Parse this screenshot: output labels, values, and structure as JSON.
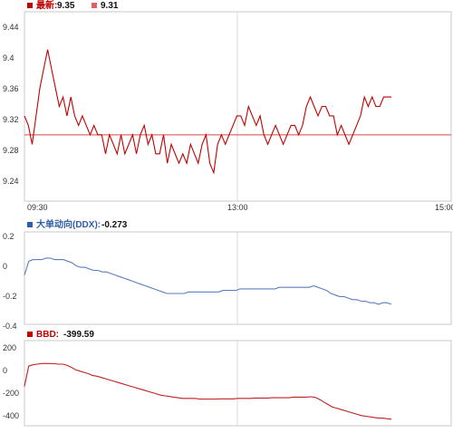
{
  "chart_data": [
    {
      "type": "line",
      "panel": "price",
      "legend": [
        {
          "label": "最新:",
          "value": "9.35",
          "color": "#c00000"
        },
        {
          "label": "",
          "value": "9.31",
          "color": "#e06060"
        }
      ],
      "y_ticks": [
        "9.44",
        "9.4",
        "9.36",
        "9.32",
        "9.28",
        "9.24"
      ],
      "ylim": [
        9.24,
        9.44
      ],
      "x_ticks": [
        "09:30",
        "13:00",
        "15:00"
      ],
      "reference_line": 9.31,
      "grid": true,
      "series": [
        {
          "color": "#c00000",
          "values": [
            9.33,
            9.32,
            9.3,
            9.33,
            9.36,
            9.38,
            9.4,
            9.38,
            9.36,
            9.34,
            9.35,
            9.33,
            9.35,
            9.33,
            9.32,
            9.33,
            9.32,
            9.31,
            9.32,
            9.31,
            9.31,
            9.29,
            9.31,
            9.3,
            9.29,
            9.31,
            9.29,
            9.3,
            9.31,
            9.29,
            9.31,
            9.32,
            9.3,
            9.31,
            9.29,
            9.29,
            9.31,
            9.28,
            9.3,
            9.29,
            9.28,
            9.29,
            9.28,
            9.3,
            9.29,
            9.28,
            9.3,
            9.31,
            9.28,
            9.27,
            9.3,
            9.31,
            9.3,
            9.31,
            9.32,
            9.33,
            9.33,
            9.32,
            9.34,
            9.33,
            9.32,
            9.33,
            9.31,
            9.3,
            9.31,
            9.32,
            9.31,
            9.3,
            9.31,
            9.32,
            9.32,
            9.31,
            9.32,
            9.34,
            9.35,
            9.34,
            9.33,
            9.34,
            9.34,
            9.33,
            9.33,
            9.31,
            9.32,
            9.31,
            9.3,
            9.31,
            9.32,
            9.33,
            9.35,
            9.34,
            9.35,
            9.34,
            9.34,
            9.35,
            9.35,
            9.35
          ]
        }
      ]
    },
    {
      "type": "line",
      "panel": "ddx",
      "legend": [
        {
          "label": "大单动向(DDX):",
          "value": "-0.273",
          "color": "#2f5ea8"
        }
      ],
      "y_ticks": [
        "0.2",
        "0",
        "-0.2",
        "-0.4"
      ],
      "ylim": [
        -0.4,
        0.2
      ],
      "x_ticks": [
        "09:30",
        "13:00",
        "15:00"
      ],
      "grid": true,
      "series": [
        {
          "color": "#5b7fc0",
          "values": [
            -0.08,
            0.01,
            0.02,
            0.02,
            0.02,
            0.03,
            0.03,
            0.02,
            0.02,
            0.02,
            0.01,
            0.0,
            -0.02,
            -0.03,
            -0.03,
            -0.04,
            -0.05,
            -0.05,
            -0.06,
            -0.06,
            -0.07,
            -0.08,
            -0.09,
            -0.1,
            -0.11,
            -0.12,
            -0.13,
            -0.14,
            -0.15,
            -0.16,
            -0.17,
            -0.18,
            -0.19,
            -0.2,
            -0.2,
            -0.2,
            -0.2,
            -0.2,
            -0.19,
            -0.19,
            -0.19,
            -0.19,
            -0.19,
            -0.19,
            -0.19,
            -0.19,
            -0.18,
            -0.18,
            -0.18,
            -0.18,
            -0.17,
            -0.17,
            -0.17,
            -0.17,
            -0.17,
            -0.17,
            -0.17,
            -0.17,
            -0.17,
            -0.16,
            -0.16,
            -0.16,
            -0.16,
            -0.16,
            -0.16,
            -0.16,
            -0.16,
            -0.15,
            -0.16,
            -0.17,
            -0.18,
            -0.2,
            -0.21,
            -0.22,
            -0.22,
            -0.23,
            -0.24,
            -0.24,
            -0.25,
            -0.25,
            -0.26,
            -0.26,
            -0.27,
            -0.26,
            -0.26,
            -0.27
          ]
        }
      ]
    },
    {
      "type": "line",
      "panel": "bbd",
      "legend": [
        {
          "label": "BBD:",
          "value": "-399.59",
          "color": "#c00000"
        }
      ],
      "y_ticks": [
        "200",
        "0",
        "-200",
        "-400"
      ],
      "ylim": [
        -450,
        220
      ],
      "x_ticks": [
        "09:30",
        "13:00",
        "15:00"
      ],
      "grid": true,
      "series": [
        {
          "color": "#c02020",
          "values": [
            -140,
            20,
            30,
            35,
            40,
            40,
            40,
            38,
            35,
            35,
            25,
            10,
            -10,
            -20,
            -30,
            -40,
            -55,
            -60,
            -70,
            -80,
            -90,
            -100,
            -110,
            -120,
            -130,
            -140,
            -150,
            -160,
            -170,
            -180,
            -190,
            -200,
            -210,
            -215,
            -220,
            -225,
            -230,
            -235,
            -235,
            -235,
            -235,
            -240,
            -240,
            -240,
            -240,
            -240,
            -238,
            -238,
            -238,
            -238,
            -235,
            -235,
            -235,
            -235,
            -232,
            -232,
            -232,
            -232,
            -230,
            -230,
            -230,
            -230,
            -230,
            -225,
            -225,
            -225,
            -225,
            -222,
            -225,
            -240,
            -260,
            -280,
            -300,
            -310,
            -320,
            -330,
            -340,
            -350,
            -360,
            -370,
            -375,
            -380,
            -385,
            -390,
            -390,
            -395,
            -398
          ]
        }
      ]
    }
  ]
}
